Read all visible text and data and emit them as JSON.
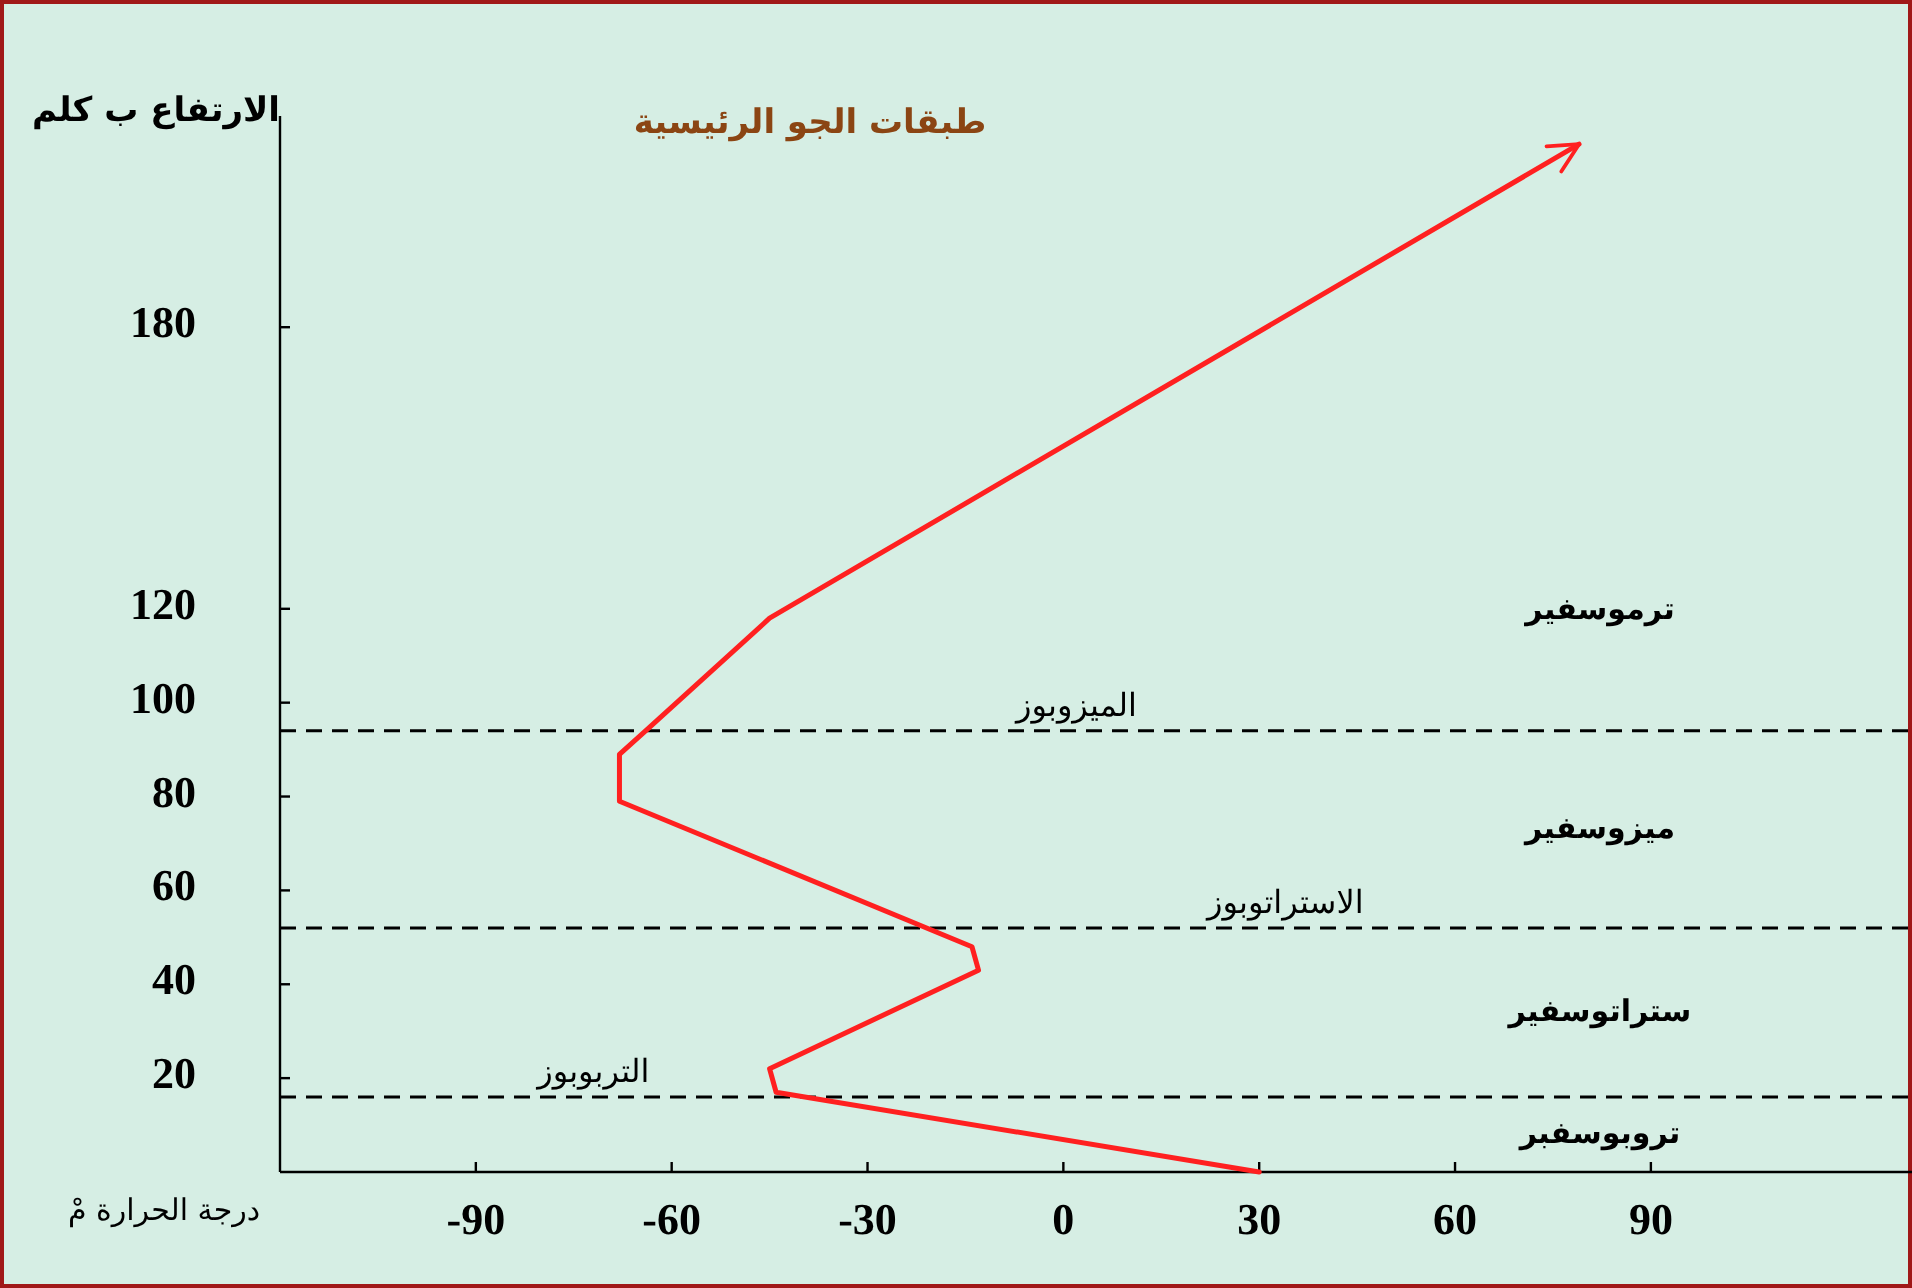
{
  "chart_data": {
    "type": "line",
    "title": "طبقات الجو الرئيسية",
    "xlabel": "درجة الحرارة مْ",
    "ylabel": "الارتفاع ب كلم",
    "x": [
      30,
      -44,
      -45,
      -13,
      -14,
      -68,
      -68,
      -64,
      -45,
      79
    ],
    "values": [
      0,
      17,
      22,
      43,
      48,
      79,
      89,
      94,
      118,
      219
    ],
    "color": "#ff2020",
    "xlim": [
      -120,
      130
    ],
    "ylim": [
      0,
      225
    ],
    "xticks": [
      -90,
      -60,
      -30,
      0,
      30,
      60,
      90
    ],
    "yticks": [
      20,
      40,
      60,
      80,
      100,
      120,
      180
    ],
    "ref_lines": [
      {
        "axis": "y",
        "value": 16,
        "label": "التربوبوز",
        "color": "#000000",
        "line_style": "dashed"
      },
      {
        "axis": "y",
        "value": 52,
        "label": "الاستراتوبوز",
        "color": "#000000",
        "line_style": "dashed"
      },
      {
        "axis": "y",
        "value": 94,
        "label": "الميزوبوز",
        "color": "#000000",
        "line_style": "dashed"
      }
    ],
    "annotations": [
      "ترموسفير",
      "ميزوسفير",
      "ستراتوسفير",
      "تروبوسفبر"
    ]
  }
}
